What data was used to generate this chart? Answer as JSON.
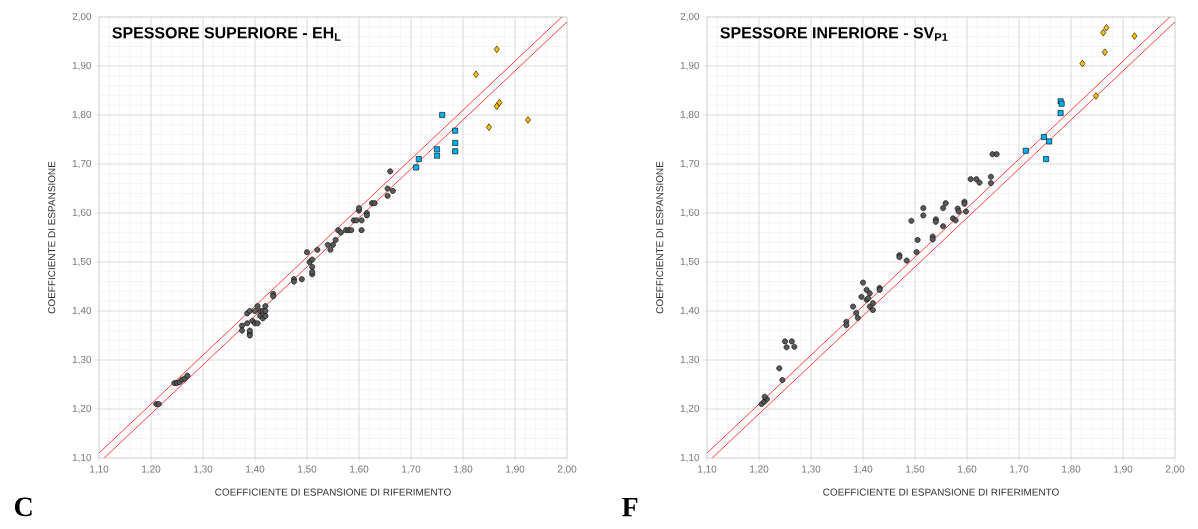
{
  "chart_data": [
    {
      "type": "scatter",
      "title": "**SPESSORE SUPERIORE - EH$_{L}$**",
      "xlabel": "COEFFICIENTE DI ESPANSIONE DI RIFERIMENTO",
      "ylabel": "COEFFICIENTE DI ESPANSIONE",
      "annotations": [
        "C"
      ],
      "xlim": [
        1.1,
        2.0
      ],
      "ylim": [
        1.1,
        2.0
      ],
      "grid": true,
      "xticks": [
        {
          "value": 1.1,
          "label": "1,10"
        },
        {
          "value": 1.2,
          "label": "1,20"
        },
        {
          "value": 1.3,
          "label": "1,30"
        },
        {
          "value": 1.4,
          "label": "1,40"
        },
        {
          "value": 1.5,
          "label": "1,50"
        },
        {
          "value": 1.6,
          "label": "1,60"
        },
        {
          "value": 1.7,
          "label": "1,70"
        },
        {
          "value": 1.8,
          "label": "1,80"
        },
        {
          "value": 1.9,
          "label": "1,90"
        },
        {
          "value": 2.0,
          "label": "2,00"
        }
      ],
      "yticks": [
        {
          "value": 1.1,
          "label": "1,10"
        },
        {
          "value": 1.2,
          "label": "1,20"
        },
        {
          "value": 1.3,
          "label": "1,30"
        },
        {
          "value": 1.4,
          "label": "1,40"
        },
        {
          "value": 1.5,
          "label": "1,50"
        },
        {
          "value": 1.6,
          "label": "1,60"
        },
        {
          "value": 1.7,
          "label": "1,70"
        },
        {
          "value": 1.8,
          "label": "1,80"
        },
        {
          "value": 1.9,
          "label": "1,90"
        },
        {
          "value": 2.0,
          "label": "2,00"
        }
      ],
      "series": [
        {
          "type": "line",
          "color": "#ff4040",
          "marker": "none",
          "line_style": "solid",
          "x": [
            1.1,
            1.99
          ],
          "values": [
            1.11,
            2.0
          ]
        },
        {
          "type": "line",
          "color": "#ff4040",
          "marker": "none",
          "line_style": "solid",
          "x": [
            1.11,
            2.0
          ],
          "values": [
            1.1,
            1.99
          ]
        },
        {
          "type": "scatter",
          "color": "#595959",
          "marker": "circle",
          "x": [
            1.21,
            1.215,
            1.245,
            1.25,
            1.255,
            1.26,
            1.265,
            1.27,
            1.375,
            1.375,
            1.385,
            1.385,
            1.39,
            1.39,
            1.39,
            1.39,
            1.395,
            1.4,
            1.4,
            1.405,
            1.405,
            1.41,
            1.41,
            1.415,
            1.415,
            1.42,
            1.42,
            1.42,
            1.435,
            1.435,
            1.475,
            1.475,
            1.49,
            1.5,
            1.505,
            1.51,
            1.51,
            1.51,
            1.51,
            1.52,
            1.54,
            1.545,
            1.55,
            1.555,
            1.56,
            1.565,
            1.575,
            1.58,
            1.585,
            1.59,
            1.595,
            1.6,
            1.6,
            1.605,
            1.605,
            1.615,
            1.615,
            1.625,
            1.63,
            1.655,
            1.655,
            1.66,
            1.665
          ],
          "values": [
            1.21,
            1.21,
            1.253,
            1.253,
            1.255,
            1.26,
            1.262,
            1.268,
            1.37,
            1.36,
            1.375,
            1.395,
            1.4,
            1.355,
            1.35,
            1.36,
            1.38,
            1.375,
            1.4,
            1.41,
            1.375,
            1.39,
            1.4,
            1.385,
            1.4,
            1.39,
            1.41,
            1.4,
            1.435,
            1.43,
            1.465,
            1.46,
            1.465,
            1.52,
            1.5,
            1.49,
            1.475,
            1.48,
            1.505,
            1.525,
            1.535,
            1.525,
            1.535,
            1.545,
            1.565,
            1.56,
            1.565,
            1.565,
            1.565,
            1.585,
            1.585,
            1.605,
            1.61,
            1.585,
            1.565,
            1.6,
            1.595,
            1.62,
            1.62,
            1.635,
            1.65,
            1.685,
            1.645
          ]
        },
        {
          "type": "scatter",
          "color": "#00b0f0",
          "marker": "square",
          "x": [
            1.71,
            1.715,
            1.75,
            1.75,
            1.76,
            1.785,
            1.785,
            1.785
          ],
          "values": [
            1.693,
            1.71,
            1.717,
            1.73,
            1.8,
            1.726,
            1.743,
            1.768
          ]
        },
        {
          "type": "scatter",
          "color": "#ffc000",
          "marker": "diamond",
          "x": [
            1.825,
            1.85,
            1.865,
            1.865,
            1.87,
            1.925
          ],
          "values": [
            1.883,
            1.775,
            1.934,
            1.818,
            1.825,
            1.79
          ]
        }
      ]
    },
    {
      "type": "scatter",
      "title": "**SPESSORE INFERIORE - SV$_{P1}$**",
      "xlabel": "COEFFICIENTE DI ESPANSIONE DI RIFERIMENTO",
      "ylabel": "COEFFICIENTE DI ESPANSIONE",
      "annotations": [
        "F"
      ],
      "xlim": [
        1.1,
        2.0
      ],
      "ylim": [
        1.1,
        2.0
      ],
      "grid": true,
      "xticks": [
        {
          "value": 1.1,
          "label": "1,10"
        },
        {
          "value": 1.2,
          "label": "1,20"
        },
        {
          "value": 1.3,
          "label": "1,30"
        },
        {
          "value": 1.4,
          "label": "1,40"
        },
        {
          "value": 1.5,
          "label": "1,50"
        },
        {
          "value": 1.6,
          "label": "1,60"
        },
        {
          "value": 1.7,
          "label": "1,70"
        },
        {
          "value": 1.8,
          "label": "1,80"
        },
        {
          "value": 1.9,
          "label": "1,90"
        },
        {
          "value": 2.0,
          "label": "2,00"
        }
      ],
      "yticks": [
        {
          "value": 1.1,
          "label": "1,10"
        },
        {
          "value": 1.2,
          "label": "1,20"
        },
        {
          "value": 1.3,
          "label": "1,30"
        },
        {
          "value": 1.4,
          "label": "1,40"
        },
        {
          "value": 1.5,
          "label": "1,50"
        },
        {
          "value": 1.6,
          "label": "1,60"
        },
        {
          "value": 1.7,
          "label": "1,70"
        },
        {
          "value": 1.8,
          "label": "1,80"
        },
        {
          "value": 1.9,
          "label": "1,90"
        },
        {
          "value": 2.0,
          "label": "2,00"
        }
      ],
      "series": [
        {
          "type": "line",
          "color": "#ff4040",
          "marker": "none",
          "line_style": "solid",
          "x": [
            1.1,
            1.99
          ],
          "values": [
            1.11,
            2.0
          ]
        },
        {
          "type": "line",
          "color": "#ff4040",
          "marker": "none",
          "line_style": "solid",
          "x": [
            1.11,
            2.0
          ],
          "values": [
            1.1,
            1.99
          ]
        },
        {
          "type": "scatter",
          "color": "#595959",
          "marker": "circle",
          "x": [
            1.205,
            1.21,
            1.215,
            1.211,
            1.239,
            1.245,
            1.25,
            1.253,
            1.263,
            1.268,
            1.368,
            1.368,
            1.381,
            1.387,
            1.39,
            1.397,
            1.4,
            1.407,
            1.407,
            1.413,
            1.413,
            1.419,
            1.432,
            1.432,
            1.41,
            1.419,
            1.47,
            1.47,
            1.484,
            1.493,
            1.505,
            1.503,
            1.516,
            1.516,
            1.534,
            1.534,
            1.54,
            1.54,
            1.554,
            1.559,
            1.554,
            1.573,
            1.578,
            1.582,
            1.584,
            1.595,
            1.595,
            1.598,
            1.607,
            1.618,
            1.624,
            1.646,
            1.646,
            1.649,
            1.657
          ],
          "values": [
            1.21,
            1.215,
            1.22,
            1.225,
            1.283,
            1.259,
            1.338,
            1.326,
            1.338,
            1.327,
            1.378,
            1.371,
            1.409,
            1.396,
            1.386,
            1.429,
            1.458,
            1.443,
            1.423,
            1.436,
            1.409,
            1.416,
            1.447,
            1.443,
            1.426,
            1.402,
            1.514,
            1.51,
            1.503,
            1.584,
            1.545,
            1.52,
            1.61,
            1.595,
            1.552,
            1.546,
            1.587,
            1.582,
            1.61,
            1.62,
            1.573,
            1.589,
            1.585,
            1.609,
            1.603,
            1.623,
            1.619,
            1.603,
            1.669,
            1.669,
            1.662,
            1.674,
            1.661,
            1.72,
            1.72
          ]
        },
        {
          "type": "scatter",
          "color": "#00b0f0",
          "marker": "square",
          "x": [
            1.713,
            1.748,
            1.752,
            1.758,
            1.78,
            1.782,
            1.78
          ],
          "values": [
            1.727,
            1.755,
            1.71,
            1.746,
            1.828,
            1.823,
            1.804
          ]
        },
        {
          "type": "scatter",
          "color": "#ffc000",
          "marker": "diamond",
          "x": [
            1.822,
            1.848,
            1.862,
            1.868,
            1.865,
            1.922
          ],
          "values": [
            1.905,
            1.839,
            1.968,
            1.978,
            1.928,
            1.961
          ]
        }
      ]
    }
  ]
}
